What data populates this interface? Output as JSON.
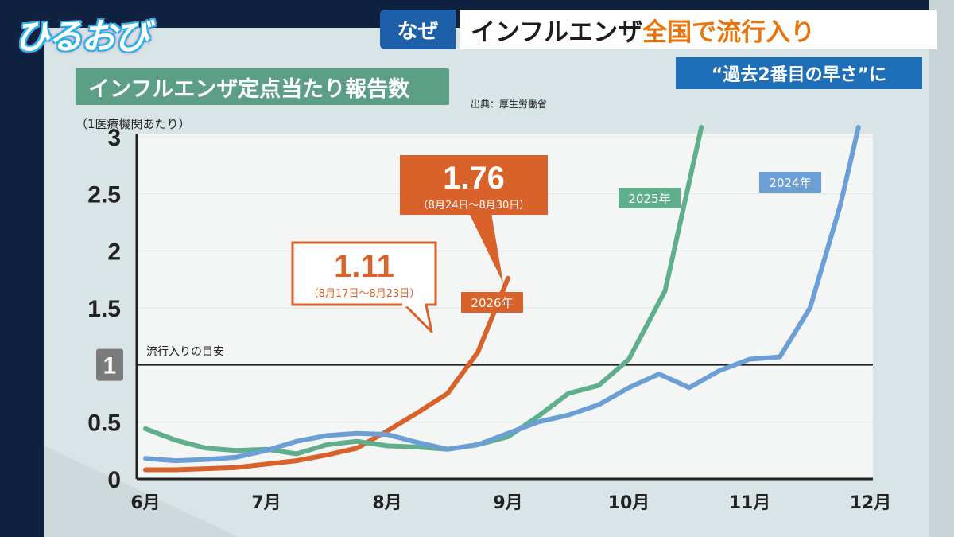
{
  "show": {
    "logo": "ひるおび"
  },
  "banner": {
    "tag": "なぜ",
    "headline_pre": "インフルエンザ",
    "headline_accent": "全国で流行入り",
    "sub": "“過去2番目の早さ”に"
  },
  "panel": {
    "title": "インフルエンザ定点当たり報告数",
    "source": "出典：厚生労働省",
    "unit": "（1医療機関あたり）"
  },
  "colors": {
    "2026": "#d8622a",
    "2025": "#5fae8c",
    "2024": "#6b9fd6",
    "title_bg": "#5d9e86",
    "banner_blue": "#1d5fa8"
  },
  "chart_data": {
    "type": "line",
    "x_tick_labels": [
      "6月",
      "7月",
      "8月",
      "9月",
      "10月",
      "11月",
      "12月"
    ],
    "xlim": [
      0,
      6
    ],
    "ylim": [
      0,
      3
    ],
    "y_ticks": [
      "0",
      "0.5",
      "1",
      "1.5",
      "2",
      "2.5",
      "3"
    ],
    "threshold": {
      "value": 1,
      "label": "流行入りの目安"
    },
    "series": [
      {
        "name": "2026年",
        "color": "#d8622a",
        "points": [
          [
            0.0,
            0.08
          ],
          [
            0.25,
            0.08
          ],
          [
            0.5,
            0.09
          ],
          [
            0.75,
            0.1
          ],
          [
            1.0,
            0.13
          ],
          [
            1.25,
            0.16
          ],
          [
            1.5,
            0.21
          ],
          [
            1.75,
            0.27
          ],
          [
            2.0,
            0.42
          ],
          [
            2.25,
            0.58
          ],
          [
            2.5,
            0.75
          ],
          [
            2.75,
            1.11
          ],
          [
            3.0,
            1.76
          ]
        ]
      },
      {
        "name": "2025年",
        "color": "#5fae8c",
        "points": [
          [
            0.0,
            0.44
          ],
          [
            0.25,
            0.34
          ],
          [
            0.5,
            0.27
          ],
          [
            0.75,
            0.25
          ],
          [
            1.0,
            0.26
          ],
          [
            1.25,
            0.22
          ],
          [
            1.5,
            0.3
          ],
          [
            1.75,
            0.33
          ],
          [
            2.0,
            0.29
          ],
          [
            2.25,
            0.28
          ],
          [
            2.5,
            0.26
          ],
          [
            2.75,
            0.3
          ],
          [
            3.0,
            0.37
          ],
          [
            3.25,
            0.55
          ],
          [
            3.5,
            0.75
          ],
          [
            3.75,
            0.82
          ],
          [
            4.0,
            1.05
          ],
          [
            4.3,
            1.65
          ],
          [
            4.6,
            3.1
          ]
        ]
      },
      {
        "name": "2024年",
        "color": "#6b9fd6",
        "points": [
          [
            0.0,
            0.18
          ],
          [
            0.25,
            0.16
          ],
          [
            0.5,
            0.17
          ],
          [
            0.75,
            0.19
          ],
          [
            1.0,
            0.25
          ],
          [
            1.25,
            0.33
          ],
          [
            1.5,
            0.38
          ],
          [
            1.75,
            0.4
          ],
          [
            2.0,
            0.39
          ],
          [
            2.25,
            0.32
          ],
          [
            2.5,
            0.26
          ],
          [
            2.75,
            0.3
          ],
          [
            3.0,
            0.4
          ],
          [
            3.25,
            0.5
          ],
          [
            3.5,
            0.56
          ],
          [
            3.75,
            0.65
          ],
          [
            4.0,
            0.8
          ],
          [
            4.25,
            0.92
          ],
          [
            4.5,
            0.8
          ],
          [
            4.75,
            0.95
          ],
          [
            5.0,
            1.05
          ],
          [
            5.25,
            1.07
          ],
          [
            5.5,
            1.5
          ],
          [
            5.75,
            2.4
          ],
          [
            5.9,
            3.1
          ]
        ]
      }
    ],
    "series_labels": {
      "2026年": "2026年",
      "2025年": "2025年",
      "2024年": "2024年"
    },
    "callouts": [
      {
        "value": "1.11",
        "period": "（8月17日～8月23日）",
        "series": "2026年",
        "point": [
          2.75,
          1.11
        ]
      },
      {
        "value": "1.76",
        "period": "（8月24日～8月30日）",
        "series": "2026年",
        "point": [
          3.0,
          1.76
        ]
      }
    ]
  }
}
